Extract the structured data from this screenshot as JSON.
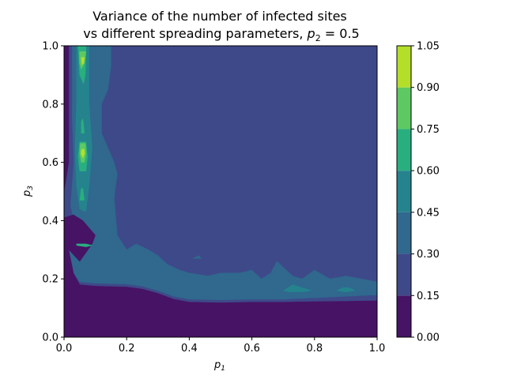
{
  "chart_data": {
    "type": "contour",
    "title_line1": "Variance of the number of infected sites",
    "title_line2_text": "vs different spreading parameters, ",
    "title_line2_math": {
      "var": "p",
      "sub": "2",
      "rest": " = 0.5"
    },
    "xlabel": {
      "var": "p",
      "sub": "1"
    },
    "ylabel": {
      "var": "p",
      "sub": "3"
    },
    "xlim": [
      0.0,
      1.0
    ],
    "ylim": [
      0.0,
      1.0
    ],
    "xticks": [
      "0.0",
      "0.2",
      "0.4",
      "0.6",
      "0.8",
      "1.0"
    ],
    "yticks": [
      "0.0",
      "0.2",
      "0.4",
      "0.6",
      "0.8",
      "1.0"
    ],
    "colorbar": {
      "levels": [
        0.0,
        0.15,
        0.3,
        0.45,
        0.6,
        0.75,
        0.9,
        1.05
      ],
      "tick_labels": [
        "0.00",
        "0.15",
        "0.30",
        "0.45",
        "0.60",
        "0.75",
        "0.90",
        "1.05"
      ],
      "colors": [
        "#471365",
        "#3e4989",
        "#30688e",
        "#25838e",
        "#29af7f",
        "#5ec962",
        "#b5de2b"
      ]
    },
    "regions": [
      {
        "level_index": 1,
        "label": "0.15–0.30",
        "polygon": [
          [
            0.0,
            1.0
          ],
          [
            1.0,
            1.0
          ],
          [
            1.0,
            0.145
          ],
          [
            0.9,
            0.14
          ],
          [
            0.8,
            0.135
          ],
          [
            0.7,
            0.13
          ],
          [
            0.6,
            0.13
          ],
          [
            0.5,
            0.128
          ],
          [
            0.4,
            0.13
          ],
          [
            0.35,
            0.14
          ],
          [
            0.3,
            0.16
          ],
          [
            0.25,
            0.175
          ],
          [
            0.2,
            0.182
          ],
          [
            0.1,
            0.185
          ],
          [
            0.05,
            0.19
          ],
          [
            0.03,
            0.22
          ],
          [
            0.01,
            0.3
          ],
          [
            0.0,
            0.32
          ]
        ]
      },
      {
        "level_index": 2,
        "label": "0.30–0.45",
        "polygon": [
          [
            0.0,
            1.0
          ],
          [
            0.15,
            1.0
          ],
          [
            0.15,
            0.93
          ],
          [
            0.14,
            0.85
          ],
          [
            0.12,
            0.8
          ],
          [
            0.12,
            0.7
          ],
          [
            0.16,
            0.6
          ],
          [
            0.17,
            0.56
          ],
          [
            0.16,
            0.48
          ],
          [
            0.17,
            0.35
          ],
          [
            0.2,
            0.3
          ],
          [
            0.23,
            0.32
          ],
          [
            0.27,
            0.3
          ],
          [
            0.3,
            0.28
          ],
          [
            0.33,
            0.25
          ],
          [
            0.37,
            0.23
          ],
          [
            0.4,
            0.22
          ],
          [
            0.46,
            0.21
          ],
          [
            0.5,
            0.22
          ],
          [
            0.56,
            0.22
          ],
          [
            0.6,
            0.23
          ],
          [
            0.63,
            0.2
          ],
          [
            0.66,
            0.22
          ],
          [
            0.68,
            0.26
          ],
          [
            0.7,
            0.24
          ],
          [
            0.73,
            0.21
          ],
          [
            0.76,
            0.2
          ],
          [
            0.8,
            0.23
          ],
          [
            0.85,
            0.2
          ],
          [
            0.9,
            0.21
          ],
          [
            0.95,
            0.2
          ],
          [
            1.0,
            0.19
          ],
          [
            1.0,
            0.145
          ],
          [
            0.9,
            0.14
          ],
          [
            0.8,
            0.135
          ],
          [
            0.7,
            0.13
          ],
          [
            0.6,
            0.13
          ],
          [
            0.5,
            0.128
          ],
          [
            0.4,
            0.13
          ],
          [
            0.35,
            0.14
          ],
          [
            0.3,
            0.16
          ],
          [
            0.25,
            0.175
          ],
          [
            0.2,
            0.182
          ],
          [
            0.1,
            0.185
          ],
          [
            0.05,
            0.19
          ],
          [
            0.03,
            0.22
          ],
          [
            0.01,
            0.3
          ],
          [
            0.0,
            0.32
          ]
        ]
      },
      {
        "level_index": 1,
        "label": "0.15–0.30",
        "polygon": [
          [
            0.0,
            1.0
          ],
          [
            0.025,
            1.0
          ],
          [
            0.025,
            0.75
          ],
          [
            0.03,
            0.6
          ],
          [
            0.02,
            0.45
          ],
          [
            0.03,
            0.4
          ],
          [
            0.07,
            0.36
          ],
          [
            0.04,
            0.32
          ],
          [
            0.02,
            0.3
          ],
          [
            0.0,
            0.3
          ]
        ]
      },
      {
        "level_index": 0,
        "label": "0.00–0.15",
        "polygon": [
          [
            0.0,
            1.0
          ],
          [
            0.015,
            1.0
          ],
          [
            0.015,
            0.6
          ],
          [
            0.0,
            0.5
          ]
        ]
      },
      {
        "level_index": 0,
        "label": "0.00–0.15",
        "polygon": [
          [
            0.0,
            0.0
          ],
          [
            1.0,
            0.0
          ],
          [
            1.0,
            0.125
          ],
          [
            0.9,
            0.123
          ],
          [
            0.8,
            0.122
          ],
          [
            0.7,
            0.12
          ],
          [
            0.6,
            0.12
          ],
          [
            0.5,
            0.118
          ],
          [
            0.4,
            0.12
          ],
          [
            0.35,
            0.13
          ],
          [
            0.3,
            0.15
          ],
          [
            0.25,
            0.165
          ],
          [
            0.2,
            0.172
          ],
          [
            0.1,
            0.175
          ],
          [
            0.05,
            0.18
          ],
          [
            0.03,
            0.22
          ],
          [
            0.015,
            0.3
          ],
          [
            0.0,
            0.31
          ]
        ]
      },
      {
        "level_index": 0,
        "label": "0.00–0.15",
        "polygon": [
          [
            0.0,
            0.31
          ],
          [
            0.015,
            0.3
          ],
          [
            0.05,
            0.26
          ],
          [
            0.09,
            0.32
          ],
          [
            0.1,
            0.35
          ],
          [
            0.06,
            0.4
          ],
          [
            0.03,
            0.42
          ],
          [
            0.0,
            0.41
          ]
        ]
      },
      {
        "level_index": 3,
        "label": "0.45–0.60",
        "polygon": [
          [
            0.04,
            1.0
          ],
          [
            0.08,
            1.0
          ],
          [
            0.08,
            0.8
          ],
          [
            0.09,
            0.65
          ],
          [
            0.08,
            0.52
          ],
          [
            0.07,
            0.43
          ],
          [
            0.05,
            0.44
          ],
          [
            0.04,
            0.52
          ],
          [
            0.035,
            0.65
          ],
          [
            0.04,
            0.8
          ]
        ]
      },
      {
        "level_index": 4,
        "label": "0.60–0.75",
        "polygon": [
          [
            0.045,
            1.0
          ],
          [
            0.07,
            1.0
          ],
          [
            0.068,
            0.9
          ],
          [
            0.062,
            0.87
          ],
          [
            0.05,
            0.9
          ]
        ]
      },
      {
        "level_index": 4,
        "label": "0.60–0.75",
        "polygon": [
          [
            0.055,
            0.74
          ],
          [
            0.06,
            0.75
          ],
          [
            0.065,
            0.7
          ],
          [
            0.055,
            0.7
          ]
        ]
      },
      {
        "level_index": 4,
        "label": "0.60–0.75",
        "polygon": [
          [
            0.05,
            0.67
          ],
          [
            0.07,
            0.67
          ],
          [
            0.075,
            0.62
          ],
          [
            0.07,
            0.57
          ],
          [
            0.05,
            0.57
          ],
          [
            0.045,
            0.62
          ]
        ]
      },
      {
        "level_index": 4,
        "label": "0.60–0.75",
        "polygon": [
          [
            0.055,
            0.51
          ],
          [
            0.06,
            0.51
          ],
          [
            0.065,
            0.47
          ],
          [
            0.05,
            0.47
          ]
        ]
      },
      {
        "level_index": 4,
        "label": "0.60–0.75",
        "polygon": [
          [
            0.04,
            0.32
          ],
          [
            0.07,
            0.32
          ],
          [
            0.09,
            0.315
          ],
          [
            0.07,
            0.31
          ],
          [
            0.04,
            0.315
          ]
        ]
      },
      {
        "level_index": 5,
        "label": "0.75–0.90",
        "polygon": [
          [
            0.05,
            0.98
          ],
          [
            0.07,
            0.98
          ],
          [
            0.065,
            0.94
          ],
          [
            0.055,
            0.92
          ],
          [
            0.05,
            0.94
          ]
        ]
      },
      {
        "level_index": 5,
        "label": "0.75–0.90",
        "polygon": [
          [
            0.052,
            0.665
          ],
          [
            0.068,
            0.665
          ],
          [
            0.07,
            0.63
          ],
          [
            0.065,
            0.6
          ],
          [
            0.055,
            0.6
          ],
          [
            0.05,
            0.63
          ]
        ]
      },
      {
        "level_index": 6,
        "label": "0.90–1.05",
        "polygon": [
          [
            0.055,
            0.96
          ],
          [
            0.065,
            0.96
          ],
          [
            0.063,
            0.94
          ],
          [
            0.058,
            0.935
          ]
        ]
      },
      {
        "level_index": 6,
        "label": "0.90–1.05",
        "polygon": [
          [
            0.056,
            0.645
          ],
          [
            0.064,
            0.645
          ],
          [
            0.066,
            0.63
          ],
          [
            0.06,
            0.615
          ],
          [
            0.054,
            0.63
          ]
        ]
      },
      {
        "level_index": 3,
        "label": "0.45–0.60",
        "polygon": [
          [
            0.7,
            0.16
          ],
          [
            0.73,
            0.18
          ],
          [
            0.76,
            0.17
          ],
          [
            0.79,
            0.16
          ],
          [
            0.76,
            0.155
          ],
          [
            0.72,
            0.155
          ]
        ]
      },
      {
        "level_index": 3,
        "label": "0.45–0.60",
        "polygon": [
          [
            0.87,
            0.16
          ],
          [
            0.89,
            0.17
          ],
          [
            0.91,
            0.17
          ],
          [
            0.93,
            0.16
          ],
          [
            0.9,
            0.155
          ]
        ]
      },
      {
        "level_index": 2,
        "label": "0.30–0.45",
        "polygon": [
          [
            0.41,
            0.27
          ],
          [
            0.43,
            0.28
          ],
          [
            0.44,
            0.27
          ]
        ]
      }
    ]
  }
}
